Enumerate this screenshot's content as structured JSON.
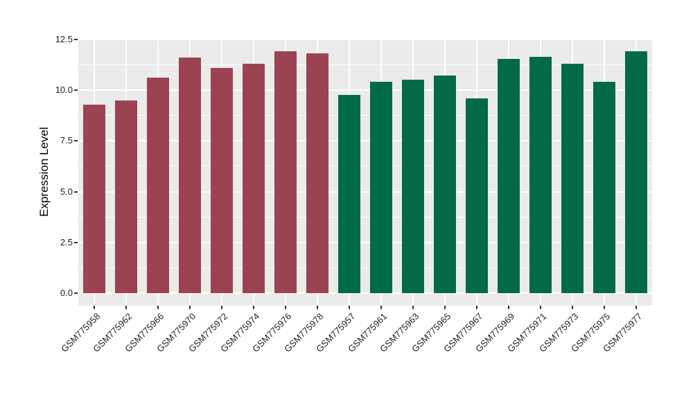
{
  "chart_data": {
    "type": "bar",
    "ylabel": "Expression Level",
    "xlabel": "",
    "categories": [
      "GSM775958",
      "GSM775962",
      "GSM775966",
      "GSM775970",
      "GSM775972",
      "GSM775974",
      "GSM775976",
      "GSM775978",
      "GSM775957",
      "GSM775961",
      "GSM775963",
      "GSM775965",
      "GSM775967",
      "GSM775969",
      "GSM775971",
      "GSM775973",
      "GSM775975",
      "GSM775977"
    ],
    "values": [
      9.3,
      9.5,
      10.6,
      11.6,
      11.1,
      11.3,
      11.9,
      11.8,
      9.75,
      10.4,
      10.5,
      10.7,
      9.6,
      11.55,
      11.65,
      11.3,
      10.4,
      11.9
    ],
    "bar_colors": [
      "#9B4352",
      "#9B4352",
      "#9B4352",
      "#9B4352",
      "#9B4352",
      "#9B4352",
      "#9B4352",
      "#9B4352",
      "#026A49",
      "#026A49",
      "#026A49",
      "#026A49",
      "#026A49",
      "#026A49",
      "#026A49",
      "#026A49",
      "#026A49",
      "#026A49"
    ],
    "group_colors": {
      "left_group": "#9B4352",
      "right_group": "#026A49"
    },
    "ytick_labels": [
      "0.0",
      "2.5",
      "5.0",
      "7.5",
      "10.0",
      "12.5"
    ],
    "ytick_values": [
      0,
      2.5,
      5,
      7.5,
      10,
      12.5
    ],
    "ylim": [
      0,
      12.5
    ],
    "minor_grid_step": 1.25,
    "grid": true,
    "legend_position": "none",
    "panel_background": "#EBEBEB",
    "grid_color": "#FFFFFF",
    "x_label_angle": 45
  }
}
